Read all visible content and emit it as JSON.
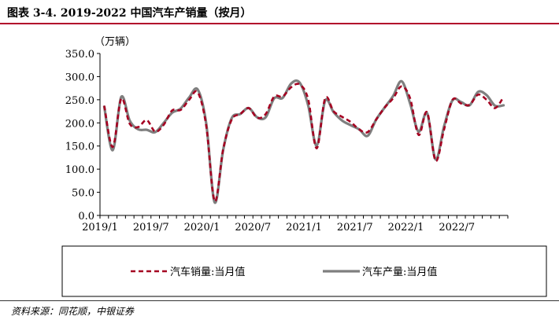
{
  "header": {
    "title": "图表 3-4. 2019-2022 中国汽车产销量（按月）"
  },
  "footer": {
    "source": "资料来源：同花顺，中银证券"
  },
  "chart_data": {
    "type": "line",
    "unit_label": "（万辆）",
    "ylim": [
      0,
      350
    ],
    "yticks": [
      "0.0",
      "50.0",
      "100.0",
      "150.0",
      "200.0",
      "250.0",
      "300.0",
      "350.0"
    ],
    "xtick_labels": [
      "2019/1",
      "2019/7",
      "2020/1",
      "2020/7",
      "2021/1",
      "2021/7",
      "2022/1",
      "2022/7"
    ],
    "x": [
      "2019/1",
      "2019/2",
      "2019/3",
      "2019/4",
      "2019/5",
      "2019/6",
      "2019/7",
      "2019/8",
      "2019/9",
      "2019/10",
      "2019/11",
      "2019/12",
      "2020/1",
      "2020/2",
      "2020/3",
      "2020/4",
      "2020/5",
      "2020/6",
      "2020/7",
      "2020/8",
      "2020/9",
      "2020/10",
      "2020/11",
      "2020/12",
      "2021/1",
      "2021/2",
      "2021/3",
      "2021/4",
      "2021/5",
      "2021/6",
      "2021/7",
      "2021/8",
      "2021/9",
      "2021/10",
      "2021/11",
      "2021/12",
      "2022/1",
      "2022/2",
      "2022/3",
      "2022/4",
      "2022/5",
      "2022/6",
      "2022/7",
      "2022/8",
      "2022/9",
      "2022/10",
      "2022/11",
      "2022/12"
    ],
    "series": [
      {
        "name": "汽车销量:当月值",
        "color": "#a50021",
        "style": "dashed",
        "values": [
          237,
          148,
          252,
          198,
          191,
          206,
          181,
          196,
          227,
          228,
          250,
          266,
          194,
          31,
          143,
          207,
          219,
          232,
          211,
          219,
          257,
          257,
          277,
          283,
          251,
          145,
          253,
          225,
          213,
          202,
          186,
          180,
          207,
          233,
          253,
          279,
          253,
          174,
          223,
          118,
          186,
          250,
          242,
          239,
          261,
          250,
          232,
          256
        ]
      },
      {
        "name": "汽车产量:当月值",
        "color": "#7f7f7f",
        "style": "solid",
        "values": [
          235,
          141,
          256,
          205,
          186,
          185,
          180,
          200,
          222,
          231,
          255,
          272,
          199,
          28,
          142,
          210,
          219,
          232,
          212,
          212,
          253,
          254,
          285,
          287,
          238,
          151,
          248,
          223,
          205,
          195,
          186,
          172,
          207,
          233,
          258,
          290,
          242,
          181,
          221,
          121,
          193,
          249,
          245,
          238,
          267,
          260,
          237,
          238
        ]
      }
    ],
    "legend_position": "bottom",
    "grid": false
  }
}
